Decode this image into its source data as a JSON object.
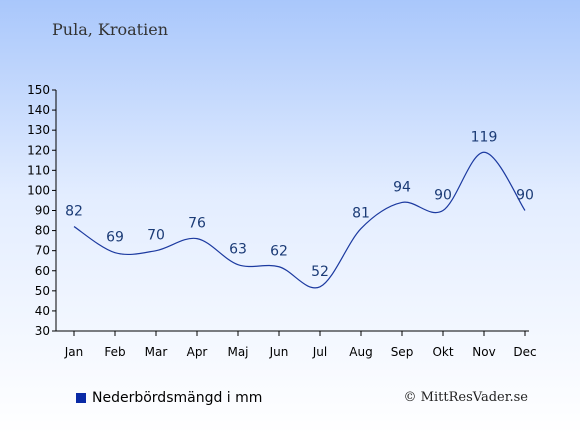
{
  "title": "Pula, Kroatien",
  "legend": {
    "label": "Nederbördsmängd i mm",
    "color": "#0a2aa6"
  },
  "credit": "© MittResVader.se",
  "chart_data": {
    "type": "line",
    "categories": [
      "Jan",
      "Feb",
      "Mar",
      "Apr",
      "Maj",
      "Jun",
      "Jul",
      "Aug",
      "Sep",
      "Okt",
      "Nov",
      "Dec"
    ],
    "series": [
      {
        "name": "Nederbördsmängd i mm",
        "values": [
          82,
          69,
          70,
          76,
          63,
          62,
          52,
          81,
          94,
          90,
          119,
          90
        ],
        "color": "#1c3aa0"
      }
    ],
    "ylim": [
      30,
      150
    ],
    "yticks": [
      30,
      40,
      50,
      60,
      70,
      80,
      90,
      100,
      110,
      120,
      130,
      140,
      150
    ],
    "title": "Pula, Kroatien",
    "xlabel": "",
    "ylabel": "",
    "legend_position": "bottom-left",
    "grid": false
  }
}
